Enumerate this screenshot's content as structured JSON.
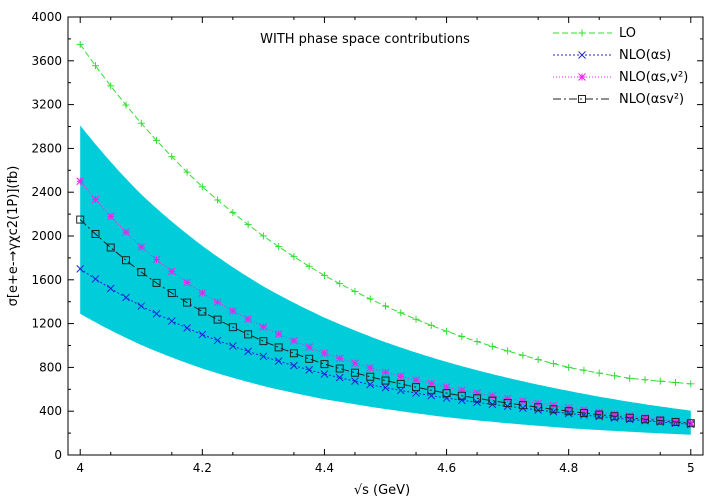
{
  "chart_data": {
    "type": "line",
    "annotation": "WITH phase space contributions",
    "xlabel": "√s (GeV)",
    "ylabel": "σ[e+e-→γχc2(1P)](fb)",
    "xlim": [
      3.98,
      5.02
    ],
    "ylim": [
      0,
      4000
    ],
    "xticks": [
      "4",
      "4.2",
      "4.4",
      "4.6",
      "4.8",
      "5"
    ],
    "yticks": [
      "0",
      "400",
      "800",
      "1200",
      "1600",
      "2000",
      "2400",
      "2800",
      "3200",
      "3600",
      "4000"
    ],
    "grid": false,
    "legend_position": "top-right",
    "band": {
      "color": "#00cdd9",
      "x": [
        4.0,
        4.1,
        4.2,
        4.3,
        4.4,
        4.5,
        4.6,
        4.7,
        4.8,
        4.9,
        5.0
      ],
      "upper": [
        3010,
        2380,
        1910,
        1540,
        1255,
        1030,
        850,
        705,
        585,
        485,
        405
      ],
      "lower": [
        1290,
        1005,
        790,
        630,
        510,
        420,
        345,
        290,
        245,
        212,
        185
      ]
    },
    "series": [
      {
        "name": "LO",
        "color": "#33dd33",
        "marker": "plus",
        "dash": "6,3",
        "x": [
          4.0,
          4.1,
          4.2,
          4.3,
          4.4,
          4.5,
          4.6,
          4.7,
          4.8,
          4.9,
          5.0
        ],
        "y": [
          3750,
          3030,
          2450,
          2000,
          1640,
          1360,
          1130,
          950,
          800,
          700,
          650
        ]
      },
      {
        "name": "NLO(αs)",
        "color": "#2222dd",
        "marker": "x",
        "dash": "2,2",
        "x": [
          4.0,
          4.1,
          4.2,
          4.3,
          4.4,
          4.5,
          4.6,
          4.7,
          4.8,
          4.9,
          5.0
        ],
        "y": [
          1700,
          1360,
          1100,
          900,
          740,
          615,
          520,
          445,
          380,
          325,
          280
        ]
      },
      {
        "name": "NLO(αs,v²)",
        "color": "#ee22ee",
        "marker": "star",
        "dash": "1,2",
        "x": [
          4.0,
          4.1,
          4.2,
          4.3,
          4.4,
          4.5,
          4.6,
          4.7,
          4.8,
          4.9,
          5.0
        ],
        "y": [
          2500,
          1900,
          1480,
          1170,
          930,
          755,
          620,
          515,
          430,
          355,
          295
        ]
      },
      {
        "name": "NLO(αsv²)",
        "color": "#222222",
        "marker": "square",
        "dash": "8,3,2,3",
        "x": [
          4.0,
          4.1,
          4.2,
          4.3,
          4.4,
          4.5,
          4.6,
          4.7,
          4.8,
          4.9,
          5.0
        ],
        "y": [
          2150,
          1670,
          1310,
          1040,
          830,
          680,
          565,
          475,
          400,
          340,
          290
        ]
      }
    ]
  }
}
